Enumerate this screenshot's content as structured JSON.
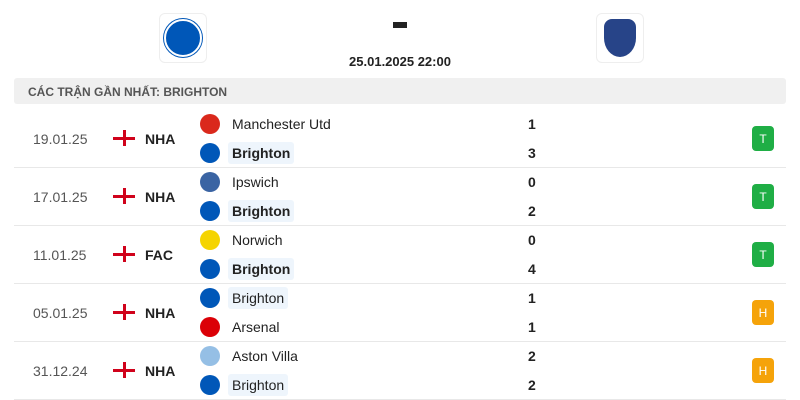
{
  "match": {
    "home_logo": "brighton-crest",
    "away_logo": "everton-crest",
    "score": "-",
    "datetime": "25.01.2025 22:00"
  },
  "section_title": "CÁC TRẬN GẦN NHẤT: BRIGHTON",
  "colors": {
    "win": "#1fae45",
    "draw": "#f5a30a",
    "brighton": "#0057b8"
  },
  "matches": [
    {
      "date": "19.01.25",
      "competition": "NHA",
      "team1": "Manchester Utd",
      "score1": "1",
      "team2": "Brighton",
      "score2": "3",
      "result": "T"
    },
    {
      "date": "17.01.25",
      "competition": "NHA",
      "team1": "Ipswich",
      "score1": "0",
      "team2": "Brighton",
      "score2": "2",
      "result": "T"
    },
    {
      "date": "11.01.25",
      "competition": "FAC",
      "team1": "Norwich",
      "score1": "0",
      "team2": "Brighton",
      "score2": "4",
      "result": "T"
    },
    {
      "date": "05.01.25",
      "competition": "NHA",
      "team1": "Brighton",
      "score1": "1",
      "team2": "Arsenal",
      "score2": "1",
      "result": "H"
    },
    {
      "date": "31.12.24",
      "competition": "NHA",
      "team1": "Aston Villa",
      "score1": "2",
      "team2": "Brighton",
      "score2": "2",
      "result": "H"
    }
  ]
}
